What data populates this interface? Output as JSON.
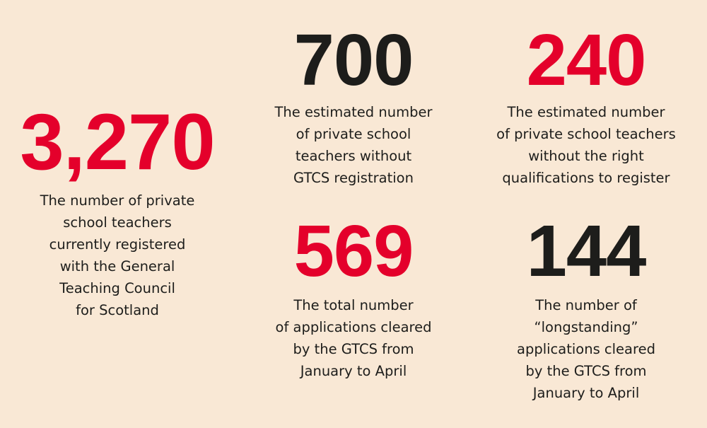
{
  "colors": {
    "background": "#f9e8d5",
    "red": "#e4002b",
    "dark": "#1d1d1b"
  },
  "stats": [
    {
      "value": "3,270",
      "color": "red",
      "lines": [
        "The number of private",
        "school teachers",
        "currently registered",
        "with the General",
        "Teaching Council",
        "for Scotland"
      ]
    },
    {
      "value": "700",
      "color": "dark",
      "lines": [
        "The estimated number",
        "of private school",
        "teachers without",
        "GTCS registration"
      ]
    },
    {
      "value": "240",
      "color": "red",
      "lines": [
        "The estimated number",
        "of private school teachers",
        "without the right",
        "qualifications to register"
      ]
    },
    {
      "value": "569",
      "color": "red",
      "lines": [
        "The total number",
        "of applications cleared",
        "by the GTCS from",
        "January to April"
      ]
    },
    {
      "value": "144",
      "color": "dark",
      "lines": [
        "The number of",
        "“longstanding”",
        "applications cleared",
        "by the GTCS from",
        "January to April"
      ]
    }
  ]
}
